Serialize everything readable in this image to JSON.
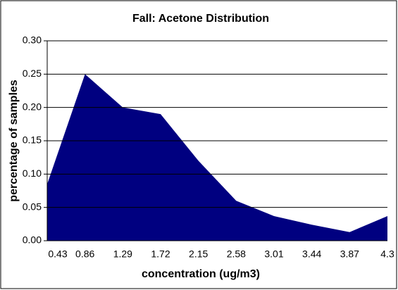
{
  "chart_data": {
    "type": "area",
    "title": "Fall:  Acetone Distribution",
    "x_label": "concentration (ug/m3)",
    "y_label": "percentage of samples",
    "categories": [
      "0.43",
      "0.86",
      "1.29",
      "1.72",
      "2.15",
      "2.58",
      "3.01",
      "3.44",
      "3.87",
      "4.3"
    ],
    "values": [
      0.085,
      0.25,
      0.2,
      0.19,
      0.12,
      0.06,
      0.037,
      0.024,
      0.013,
      0.037
    ],
    "color": "#000080",
    "ylim": [
      0,
      0.3
    ],
    "yticks": [
      {
        "value": 0,
        "label": "0.00"
      },
      {
        "value": 0.05,
        "label": "0.05"
      },
      {
        "value": 0.1,
        "label": "0.10"
      },
      {
        "value": 0.15,
        "label": "0.15"
      },
      {
        "value": 0.2,
        "label": "0.20"
      },
      {
        "value": 0.25,
        "label": "0.25"
      },
      {
        "value": 0.3,
        "label": "0.30"
      }
    ],
    "grid": true
  }
}
